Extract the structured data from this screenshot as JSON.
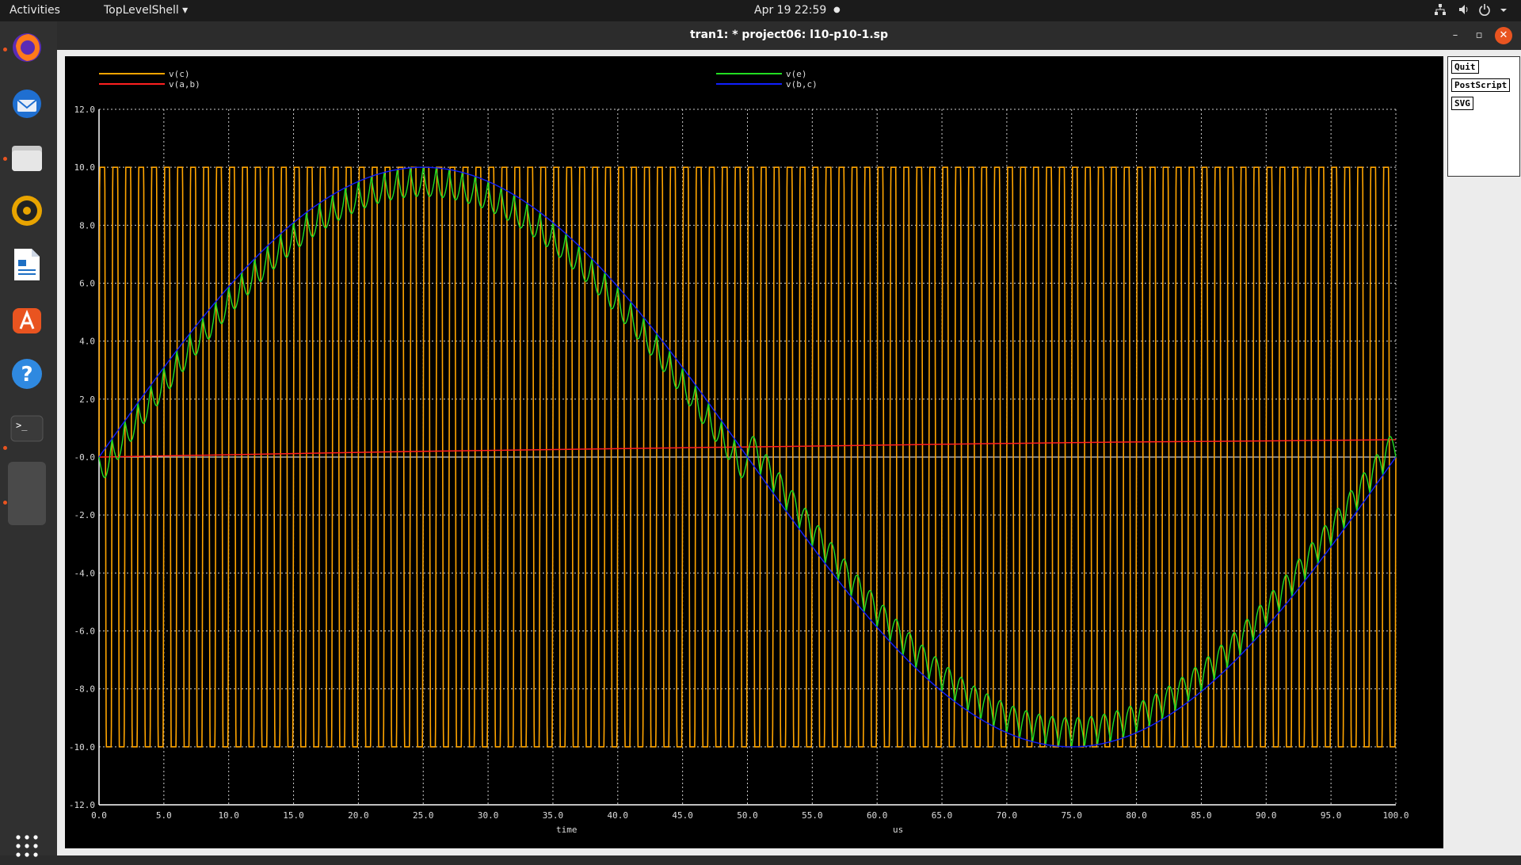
{
  "topbar": {
    "activities": "Activities",
    "app_menu": "TopLevelShell ▾",
    "clock": "Apr 19  22:59",
    "status_dot": "●"
  },
  "dock": {
    "items": [
      "firefox-icon",
      "thunderbird-icon",
      "files-icon",
      "rhythmbox-icon",
      "writer-icon",
      "app-center-icon",
      "help-icon",
      "terminal-icon",
      "blank-window-icon"
    ],
    "apps_grid": "show-apps-icon"
  },
  "window": {
    "title": "tran1: * project06: l10-p10-1.sp"
  },
  "buttons": {
    "quit": "Quit",
    "postscript": "PostScript",
    "svg": "SVG"
  },
  "chart_data": {
    "type": "line",
    "xlabel": "time",
    "xunit": "us",
    "xlim": [
      0,
      100
    ],
    "ylim": [
      -12,
      12
    ],
    "x_ticks": [
      "0.0",
      "5.0",
      "10.0",
      "15.0",
      "20.0",
      "25.0",
      "30.0",
      "35.0",
      "40.0",
      "45.0",
      "50.0",
      "55.0",
      "60.0",
      "65.0",
      "70.0",
      "75.0",
      "80.0",
      "85.0",
      "90.0",
      "95.0",
      "100.0"
    ],
    "y_ticks": [
      "12.0",
      "10.0",
      "8.0",
      "6.0",
      "4.0",
      "2.0",
      "-0.0",
      "-2.0",
      "-4.0",
      "-6.0",
      "-8.0",
      "-10.0",
      "-12.0"
    ],
    "grid": true,
    "series": [
      {
        "name": "v(c)",
        "color": "#ffa500",
        "shape": "square-like carrier",
        "amplitude": 10,
        "frequency_per_us": 1,
        "x_range": [
          0,
          100
        ]
      },
      {
        "name": "v(a,b)",
        "color": "#ff2020",
        "shape": "slow ramp",
        "points": [
          [
            0,
            0
          ],
          [
            25,
            0.2
          ],
          [
            50,
            0.35
          ],
          [
            75,
            0.5
          ],
          [
            100,
            0.6
          ]
        ]
      },
      {
        "name": "v(e)",
        "color": "#22dd22",
        "shape": "sine with ripple",
        "amplitude": 10,
        "period_us": 100,
        "ripple_amplitude": 1,
        "ripple_frequency_per_us": 1
      },
      {
        "name": "v(b,c)",
        "color": "#1020ff",
        "shape": "sine",
        "amplitude": 10,
        "period_us": 100
      }
    ]
  }
}
